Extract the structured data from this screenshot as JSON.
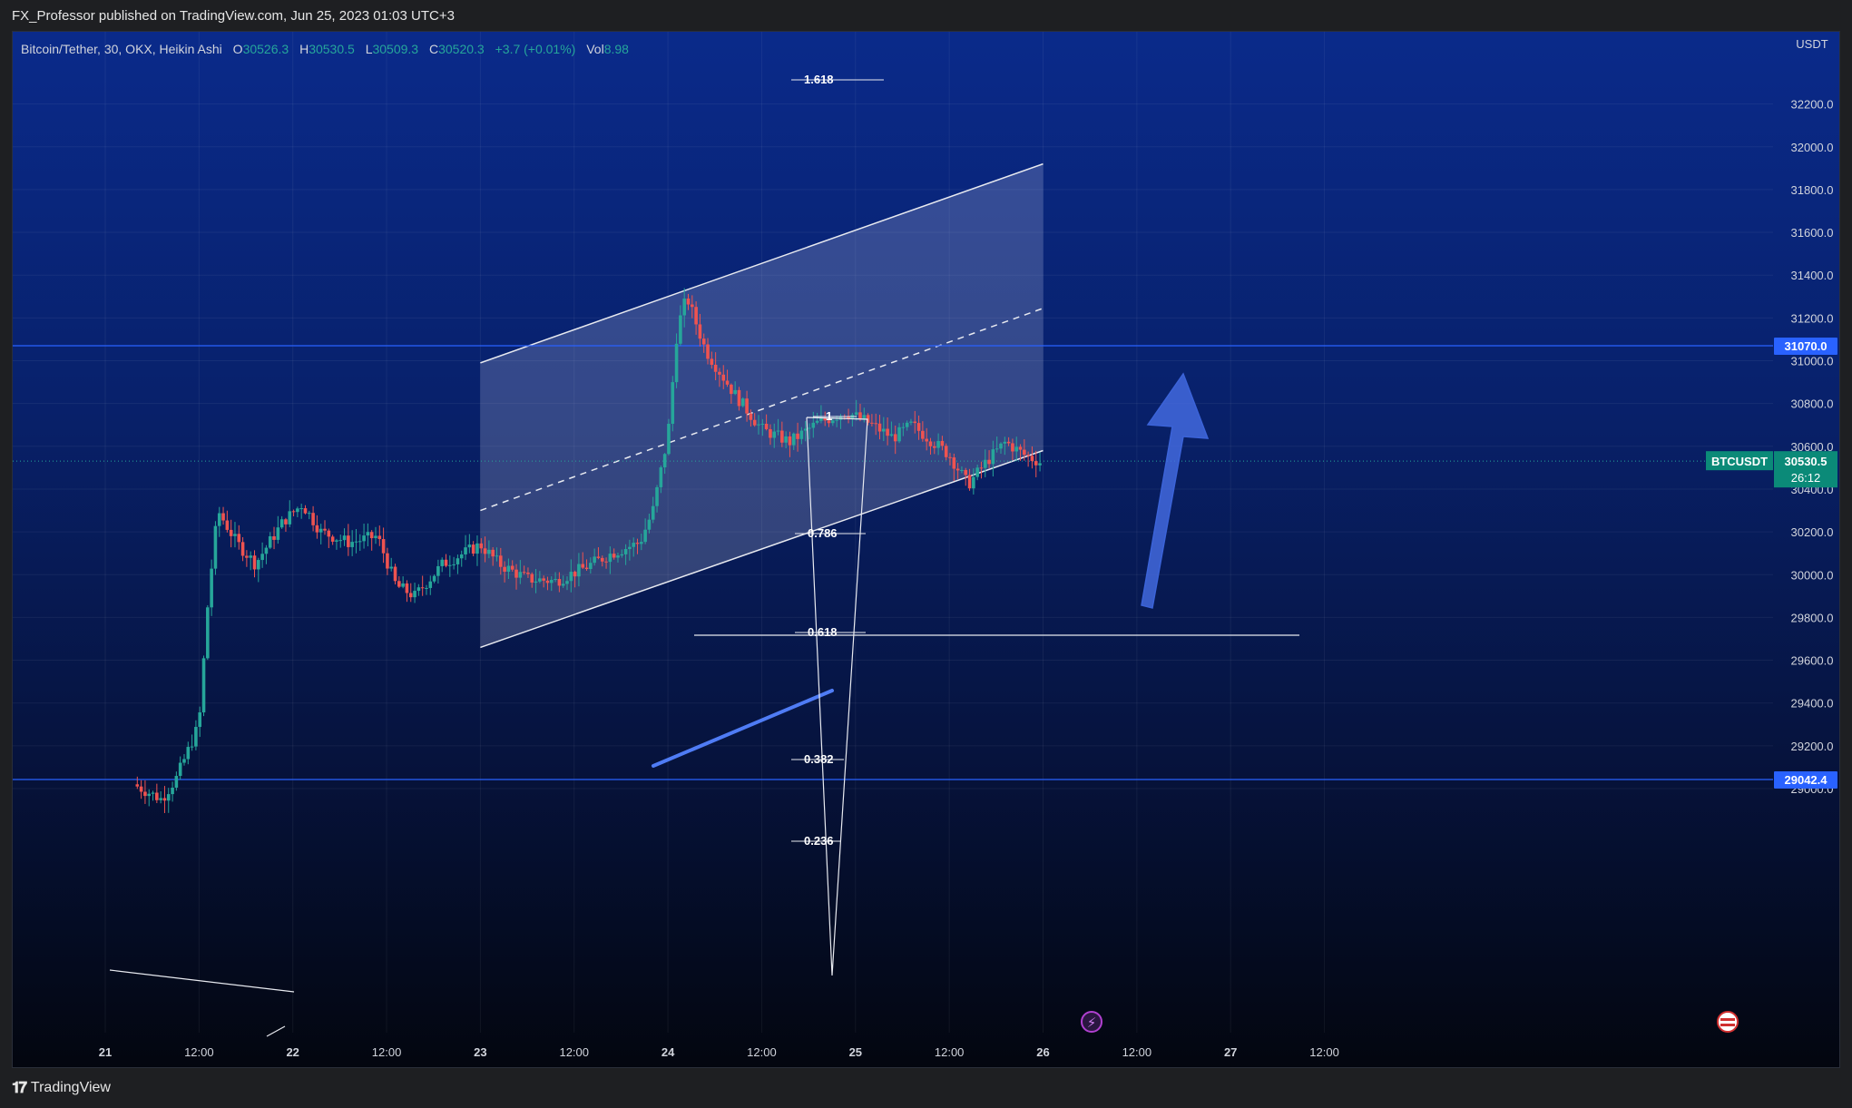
{
  "header": {
    "published": "FX_Professor published on TradingView.com, Jun 25, 2023 01:03 UTC+3"
  },
  "legend": {
    "symbol": "Bitcoin/Tether, 30, OKX, Heikin Ashi",
    "open_label": "O",
    "open": "30526.3",
    "high_label": "H",
    "high": "30530.5",
    "low_label": "L",
    "low": "30509.3",
    "close_label": "C",
    "close": "30520.3",
    "change": "+3.7 (+0.01%)",
    "vol_label": "Vol",
    "vol": "8.98"
  },
  "price_axis": {
    "currency": "USDT",
    "ticks": [
      "32200.0",
      "32000.0",
      "31800.0",
      "31600.0",
      "31400.0",
      "31200.0",
      "31000.0",
      "30800.0",
      "30600.0",
      "30400.0",
      "30200.0",
      "30000.0",
      "29800.0",
      "29600.0",
      "29400.0",
      "29200.0",
      "29000.0"
    ],
    "level_upper": "31070.0",
    "level_lower": "29042.4",
    "last_symbol": "BTCUSDT",
    "last_price": "30530.5",
    "countdown": "26:12"
  },
  "time_axis": {
    "ticks": [
      "21",
      "12:00",
      "22",
      "12:00",
      "23",
      "12:00",
      "24",
      "12:00",
      "25",
      "12:00",
      "26",
      "12:00",
      "27",
      "12:00"
    ]
  },
  "fib": {
    "levels": [
      "1.618",
      "1",
      "0.786",
      "0.618",
      "0.382",
      "0.236"
    ]
  },
  "colors": {
    "bull": "#26a69a",
    "bear": "#ef5350",
    "level_line": "#2962ff",
    "accent_badge": "#2962ff"
  },
  "icons": {
    "event_flash": "lightning-icon",
    "event_flag": "us-flag-icon"
  },
  "footer": {
    "brand": "TradingView"
  },
  "chart_data": {
    "type": "candlestick",
    "title": "Bitcoin/Tether, 30, OKX, Heikin Ashi",
    "x_range": [
      "21",
      "27 12:00"
    ],
    "ylim": [
      28880,
      32300
    ],
    "horizontal_levels": [
      31070.0,
      29042.4
    ],
    "last_price": 30530.5,
    "channel": {
      "upper": [
        [
          23.0,
          30990
        ],
        [
          26.0,
          31920
        ]
      ],
      "mid": [
        [
          23.0,
          30300
        ],
        [
          26.0,
          31245
        ]
      ],
      "lower": [
        [
          23.0,
          29660
        ],
        [
          26.0,
          30580
        ]
      ]
    },
    "fib_levels": [
      1.618,
      1,
      0.786,
      0.618,
      0.382,
      0.236
    ],
    "grid": true
  }
}
